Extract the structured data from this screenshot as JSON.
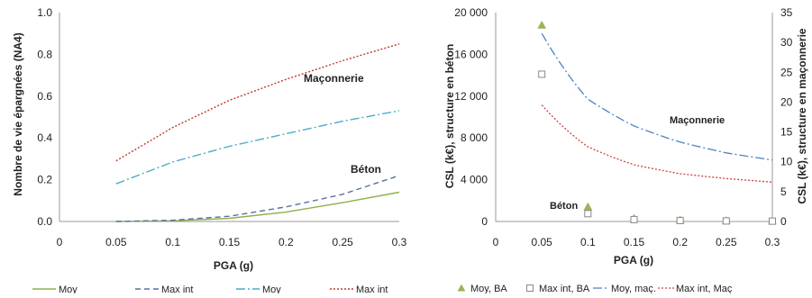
{
  "chart_data": [
    {
      "type": "line",
      "xlabel": "PGA (g)",
      "ylabel": "Nombre de vie épargnées (NA4)",
      "xlim": [
        0,
        0.3
      ],
      "ylim": [
        0,
        1.0
      ],
      "x_ticks": [
        "0",
        "0.05",
        "0.1",
        "0.15",
        "0.2",
        "0.25",
        "0.3"
      ],
      "y_ticks": [
        "0.0",
        "0.2",
        "0.4",
        "0.6",
        "0.8",
        "1.0"
      ],
      "grid": false,
      "legend_position": "bottom",
      "annotations": [
        "Maçonnerie",
        "Béton"
      ],
      "series": [
        {
          "name": "Moy",
          "color": "#8fb04a",
          "dash": "solid",
          "x": [
            0.05,
            0.1,
            0.15,
            0.2,
            0.25,
            0.3
          ],
          "y": [
            0.0,
            0.003,
            0.015,
            0.045,
            0.09,
            0.14
          ]
        },
        {
          "name": "Max int",
          "color": "#5a6fa8",
          "dash": "dash",
          "x": [
            0.05,
            0.1,
            0.15,
            0.2,
            0.25,
            0.3
          ],
          "y": [
            0.0,
            0.006,
            0.025,
            0.07,
            0.13,
            0.22
          ]
        },
        {
          "name": "Moy",
          "color": "#4aaccb",
          "dash": "dashdot",
          "x": [
            0.05,
            0.1,
            0.15,
            0.2,
            0.25,
            0.3
          ],
          "y": [
            0.18,
            0.285,
            0.36,
            0.42,
            0.48,
            0.53
          ]
        },
        {
          "name": "Max int",
          "color": "#c0392b",
          "dash": "dot",
          "x": [
            0.05,
            0.1,
            0.15,
            0.2,
            0.25,
            0.3
          ],
          "y": [
            0.29,
            0.45,
            0.58,
            0.68,
            0.77,
            0.85
          ]
        }
      ]
    },
    {
      "type": "scatter+line",
      "xlabel": "PGA (g)",
      "ylabel": "CSL (k€), structure en béton",
      "y2label": "CSL (k€), structure en maçonnerie",
      "xlim": [
        0,
        0.3
      ],
      "ylim": [
        0,
        20000
      ],
      "y2lim": [
        0,
        35
      ],
      "x_ticks": [
        "0",
        "0.05",
        "0.1",
        "0.15",
        "0.2",
        "0.25",
        "0.3"
      ],
      "y_ticks": [
        "0",
        "4 000",
        "8 000",
        "12 000",
        "16 000",
        "20 000"
      ],
      "y2_ticks": [
        "0",
        "5",
        "10",
        "15",
        "20",
        "25",
        "30",
        "35"
      ],
      "grid": false,
      "legend_position": "bottom",
      "annotations": [
        "Maçonnerie",
        "Béton"
      ],
      "series": [
        {
          "name": "Moy, BA",
          "color": "#9bb35a",
          "marker": "triangle",
          "axis": "left",
          "x": [
            0.05,
            0.1,
            0.15,
            0.2,
            0.25,
            0.3
          ],
          "y": [
            18800,
            1400,
            300,
            150,
            80,
            50
          ]
        },
        {
          "name": "Max int, BA",
          "color": "#888888",
          "marker": "square-open",
          "axis": "left",
          "x": [
            0.05,
            0.1,
            0.15,
            0.2,
            0.25,
            0.3
          ],
          "y": [
            14100,
            750,
            180,
            90,
            50,
            30
          ]
        },
        {
          "name": "Moy, maç.",
          "color": "#4a84c4",
          "dash": "dashdot",
          "axis": "right",
          "x": [
            0.05,
            0.1,
            0.15,
            0.2,
            0.25,
            0.3
          ],
          "y": [
            31.5,
            20.5,
            16.0,
            13.3,
            11.5,
            10.3
          ]
        },
        {
          "name": "Max int, Maç",
          "color": "#d04040",
          "dash": "dot",
          "axis": "right",
          "x": [
            0.05,
            0.1,
            0.15,
            0.2,
            0.25,
            0.3
          ],
          "y": [
            19.5,
            12.5,
            9.5,
            8.0,
            7.2,
            6.6
          ]
        }
      ]
    }
  ]
}
